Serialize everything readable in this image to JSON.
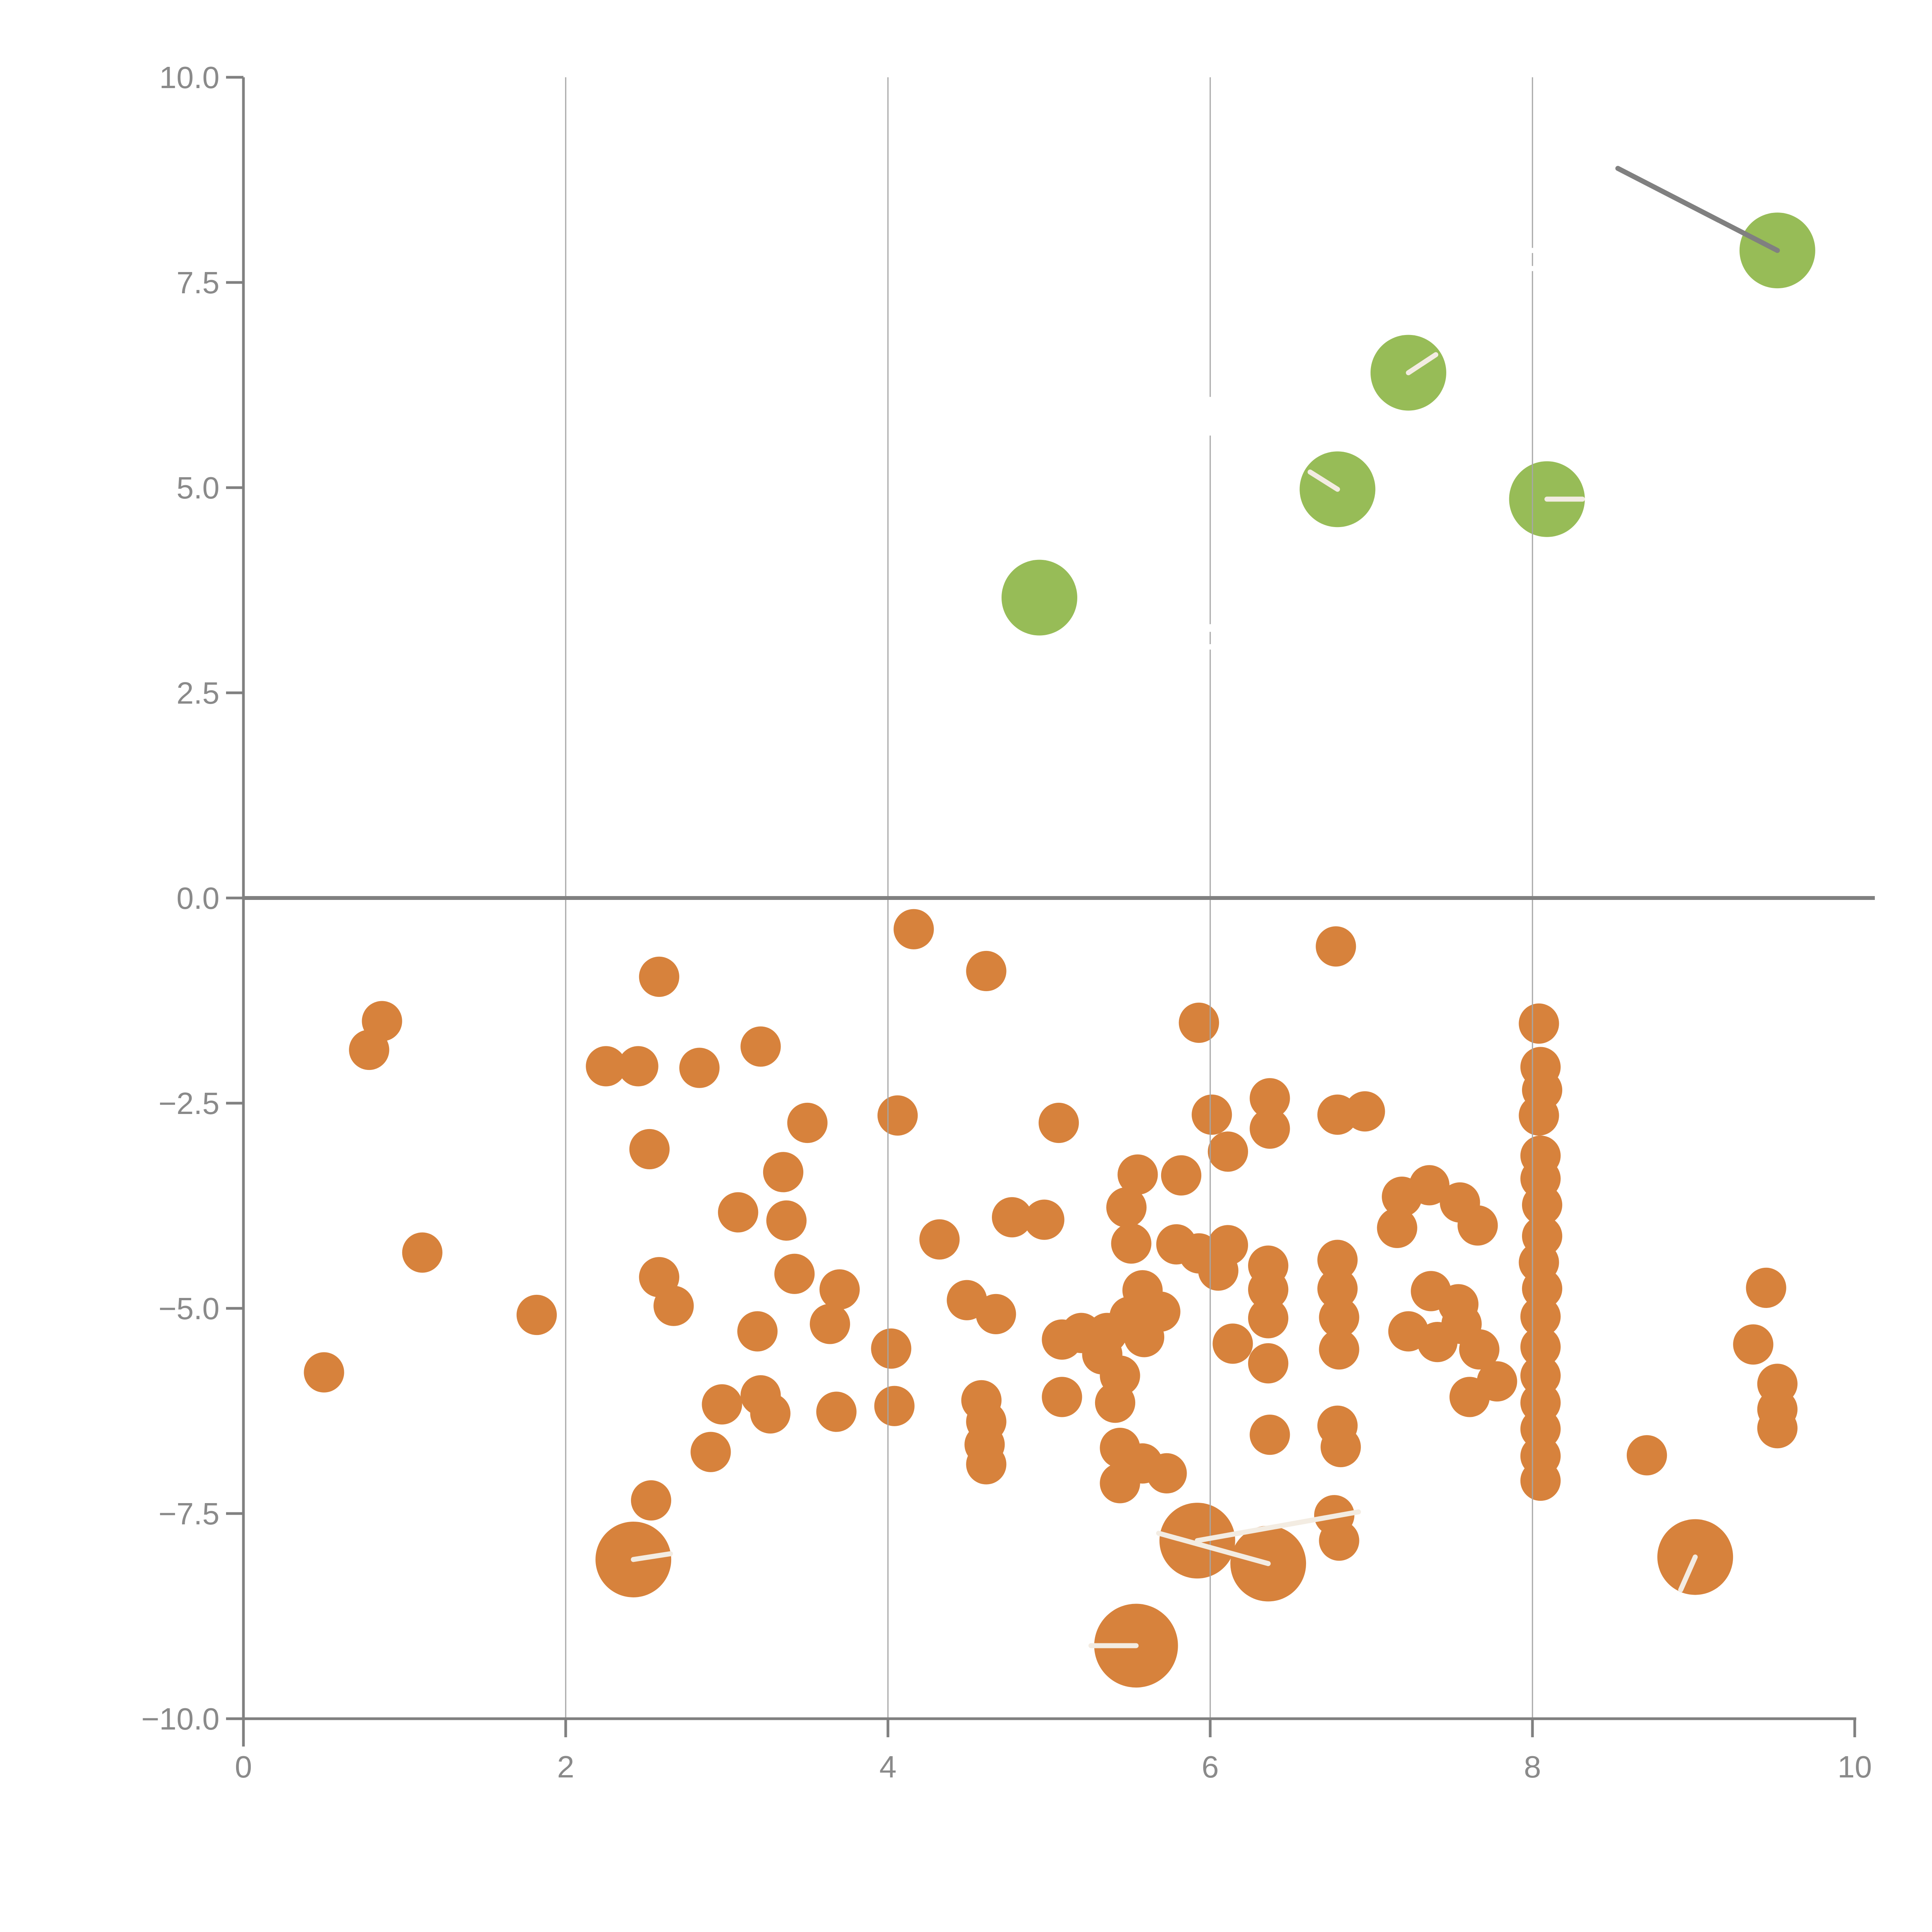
{
  "chart_data": {
    "type": "scatter",
    "title": "",
    "xlabel": "",
    "ylabel": "",
    "xlim": [
      0,
      10
    ],
    "ylim": [
      -10,
      10
    ],
    "grid": "vertical-only",
    "legend": "none",
    "x_ticks": [
      0,
      2,
      4,
      6,
      8,
      10
    ],
    "x_tick_labels": [
      "0",
      "2",
      "4",
      "6",
      "8",
      "10"
    ],
    "y_ticks": [
      10.0,
      7.5,
      5.0,
      2.5,
      0.0,
      -2.5,
      -5.0,
      -7.5,
      -10.0
    ],
    "y_tick_labels": [
      "10.0",
      "7.5",
      "5.0",
      "2.5",
      "0.0",
      "−2.5",
      "−5.0",
      "−7.5",
      "−10.0"
    ],
    "gridline_x_values": [
      2,
      4,
      6,
      8
    ],
    "zero_line_y": 0,
    "colors": {
      "orange": "#D7823C",
      "green": "#97BC57",
      "gray_line": "#808080",
      "axis": "#808080",
      "gridline": "#a6a6a6",
      "tick_label": "#8a8a8a",
      "white_marker": "#ffffff",
      "spoke": "#f3ece2"
    },
    "leader_line": {
      "x1": 8.53,
      "y1": 8.89,
      "x2": 9.52,
      "y2": 7.89
    },
    "series": [
      {
        "name": "green_bubbles",
        "marker_radius": 0.235,
        "points": [
          {
            "x": 9.52,
            "y": 7.89
          },
          {
            "x": 7.23,
            "y": 6.4,
            "spoke": [
              7.4,
              6.62
            ]
          },
          {
            "x": 6.79,
            "y": 4.98,
            "spoke": [
              6.62,
              5.19
            ]
          },
          {
            "x": 8.09,
            "y": 4.86,
            "spoke": [
              8.31,
              4.86
            ]
          },
          {
            "x": 4.94,
            "y": 3.66
          }
        ]
      },
      {
        "name": "orange_large_bubbles",
        "marker_radius": 0.235,
        "points": [
          {
            "x": 2.42,
            "y": -8.06,
            "spoke": [
              2.65,
              -7.99
            ]
          },
          {
            "x": 5.92,
            "y": -7.83,
            "spoke": [
              6.92,
              -7.48
            ]
          },
          {
            "x": 6.36,
            "y": -8.11,
            "spoke": [
              5.68,
              -7.74
            ]
          },
          {
            "x": 5.54,
            "y": -9.11,
            "r": 0.26,
            "spoke": [
              5.26,
              -9.11
            ]
          },
          {
            "x": 9.01,
            "y": -8.03,
            "spoke": [
              8.92,
              -8.43
            ]
          }
        ]
      },
      {
        "name": "orange_points",
        "marker_radius": 0.125,
        "points": [
          {
            "x": 0.86,
            "y": -1.5
          },
          {
            "x": 0.78,
            "y": -1.85
          },
          {
            "x": 1.11,
            "y": -4.32
          },
          {
            "x": 0.5,
            "y": -5.78
          },
          {
            "x": 1.82,
            "y": -5.08
          },
          {
            "x": 2.25,
            "y": -2.05
          },
          {
            "x": 2.45,
            "y": -2.05
          },
          {
            "x": 2.58,
            "y": -0.96
          },
          {
            "x": 2.52,
            "y": -3.06
          },
          {
            "x": 2.58,
            "y": -4.62
          },
          {
            "x": 2.67,
            "y": -4.97
          },
          {
            "x": 2.53,
            "y": -7.34
          },
          {
            "x": 3.21,
            "y": -1.81
          },
          {
            "x": 2.83,
            "y": -2.07
          },
          {
            "x": 3.5,
            "y": -2.74
          },
          {
            "x": 3.35,
            "y": -3.34
          },
          {
            "x": 3.07,
            "y": -3.83
          },
          {
            "x": 3.37,
            "y": -3.93
          },
          {
            "x": 3.42,
            "y": -4.58
          },
          {
            "x": 3.7,
            "y": -4.77
          },
          {
            "x": 3.19,
            "y": -5.28
          },
          {
            "x": 3.64,
            "y": -5.19
          },
          {
            "x": 2.97,
            "y": -6.17
          },
          {
            "x": 3.21,
            "y": -6.06
          },
          {
            "x": 3.27,
            "y": -6.28
          },
          {
            "x": 3.68,
            "y": -6.26
          },
          {
            "x": 4.04,
            "y": -6.19
          },
          {
            "x": 2.9,
            "y": -6.75
          },
          {
            "x": 4.16,
            "y": -0.38
          },
          {
            "x": 4.61,
            "y": -0.89
          },
          {
            "x": 4.06,
            "y": -2.65
          },
          {
            "x": 5.06,
            "y": -2.74
          },
          {
            "x": 4.77,
            "y": -3.89
          },
          {
            "x": 4.97,
            "y": -3.92
          },
          {
            "x": 4.32,
            "y": -4.16
          },
          {
            "x": 4.49,
            "y": -4.9
          },
          {
            "x": 4.67,
            "y": -5.07
          },
          {
            "x": 4.02,
            "y": -5.49
          },
          {
            "x": 4.58,
            "y": -6.12
          },
          {
            "x": 4.61,
            "y": -6.38
          },
          {
            "x": 4.6,
            "y": -6.66
          },
          {
            "x": 4.61,
            "y": -6.9
          },
          {
            "x": 5.08,
            "y": -6.08
          },
          {
            "x": 5.08,
            "y": -5.38
          },
          {
            "x": 5.2,
            "y": -5.3
          },
          {
            "x": 5.33,
            "y": -5.56
          },
          {
            "x": 5.58,
            "y": -4.78
          },
          {
            "x": 5.69,
            "y": -5.04
          },
          {
            "x": 5.5,
            "y": -5.1
          },
          {
            "x": 5.36,
            "y": -5.3
          },
          {
            "x": 5.59,
            "y": -5.35
          },
          {
            "x": 5.44,
            "y": -5.82
          },
          {
            "x": 5.41,
            "y": -6.15
          },
          {
            "x": 5.44,
            "y": -6.7
          },
          {
            "x": 5.58,
            "y": -6.89
          },
          {
            "x": 5.73,
            "y": -7.01
          },
          {
            "x": 5.44,
            "y": -7.13
          },
          {
            "x": 5.93,
            "y": -1.52
          },
          {
            "x": 6.01,
            "y": -2.64
          },
          {
            "x": 6.11,
            "y": -3.09
          },
          {
            "x": 6.37,
            "y": -2.44
          },
          {
            "x": 6.37,
            "y": -2.81
          },
          {
            "x": 6.79,
            "y": -2.64
          },
          {
            "x": 6.96,
            "y": -2.6
          },
          {
            "x": 6.78,
            "y": -0.59
          },
          {
            "x": 5.55,
            "y": -3.37
          },
          {
            "x": 5.48,
            "y": -3.77
          },
          {
            "x": 5.51,
            "y": -4.21
          },
          {
            "x": 5.82,
            "y": -3.38
          },
          {
            "x": 5.79,
            "y": -4.22
          },
          {
            "x": 5.93,
            "y": -4.33
          },
          {
            "x": 6.11,
            "y": -4.23
          },
          {
            "x": 6.05,
            "y": -4.54
          },
          {
            "x": 6.36,
            "y": -4.48
          },
          {
            "x": 6.36,
            "y": -4.77
          },
          {
            "x": 6.36,
            "y": -5.12
          },
          {
            "x": 6.14,
            "y": -5.43
          },
          {
            "x": 6.36,
            "y": -5.67
          },
          {
            "x": 6.37,
            "y": -6.54
          },
          {
            "x": 6.79,
            "y": -4.41
          },
          {
            "x": 6.79,
            "y": -4.76
          },
          {
            "x": 6.8,
            "y": -5.11
          },
          {
            "x": 6.8,
            "y": -5.5
          },
          {
            "x": 6.79,
            "y": -6.43
          },
          {
            "x": 6.81,
            "y": -6.69
          },
          {
            "x": 6.77,
            "y": -7.52
          },
          {
            "x": 6.8,
            "y": -7.83
          },
          {
            "x": 7.19,
            "y": -3.64
          },
          {
            "x": 7.36,
            "y": -3.5
          },
          {
            "x": 7.55,
            "y": -3.71
          },
          {
            "x": 7.66,
            "y": -3.99
          },
          {
            "x": 7.16,
            "y": -4.02
          },
          {
            "x": 7.37,
            "y": -4.79
          },
          {
            "x": 7.54,
            "y": -4.95
          },
          {
            "x": 7.23,
            "y": -5.28
          },
          {
            "x": 7.41,
            "y": -5.41
          },
          {
            "x": 7.56,
            "y": -5.19
          },
          {
            "x": 7.67,
            "y": -5.5
          },
          {
            "x": 7.78,
            "y": -5.89
          },
          {
            "x": 7.61,
            "y": -6.08
          },
          {
            "x": 8.04,
            "y": -1.53
          },
          {
            "x": 8.05,
            "y": -2.06
          },
          {
            "x": 8.06,
            "y": -2.34
          },
          {
            "x": 8.04,
            "y": -2.65
          },
          {
            "x": 8.05,
            "y": -3.14
          },
          {
            "x": 8.05,
            "y": -3.42
          },
          {
            "x": 8.06,
            "y": -3.74
          },
          {
            "x": 8.06,
            "y": -4.12
          },
          {
            "x": 8.04,
            "y": -4.44
          },
          {
            "x": 8.06,
            "y": -4.76
          },
          {
            "x": 8.05,
            "y": -5.1
          },
          {
            "x": 8.05,
            "y": -5.47
          },
          {
            "x": 8.05,
            "y": -5.82
          },
          {
            "x": 8.05,
            "y": -6.15
          },
          {
            "x": 8.05,
            "y": -6.47
          },
          {
            "x": 8.05,
            "y": -6.8
          },
          {
            "x": 8.05,
            "y": -7.1
          },
          {
            "x": 8.71,
            "y": -6.79
          },
          {
            "x": 9.45,
            "y": -4.75
          },
          {
            "x": 9.37,
            "y": -5.44
          },
          {
            "x": 9.52,
            "y": -5.92
          },
          {
            "x": 9.52,
            "y": -6.23
          },
          {
            "x": 9.52,
            "y": -6.46
          }
        ]
      },
      {
        "name": "white_points",
        "points": [
          {
            "x": 6.0,
            "y": 5.87,
            "r": 0.12
          },
          {
            "x": 6.0,
            "y": 3.29,
            "r": 0.024
          },
          {
            "x": 6.0,
            "y": 3.06,
            "r": 0.017
          },
          {
            "x": 8.0,
            "y": 7.89,
            "r": 0.016
          },
          {
            "x": 8.0,
            "y": 7.67,
            "r": 0.016
          }
        ]
      }
    ]
  }
}
